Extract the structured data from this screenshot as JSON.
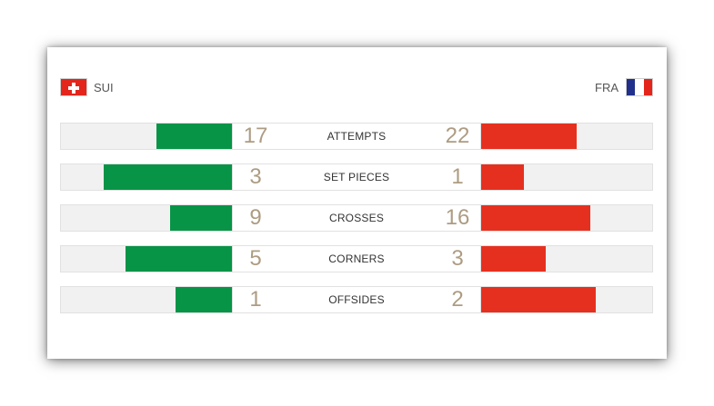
{
  "teams": {
    "home": {
      "code": "SUI",
      "flag_icon": "switzerland-flag-icon"
    },
    "away": {
      "code": "FRA",
      "flag_icon": "france-flag-icon"
    }
  },
  "colors": {
    "home": "#079447",
    "away": "#e6301f",
    "track": "#f1f1f1",
    "numbers": "#ad9c82"
  },
  "stats": [
    {
      "label": "ATTEMPTS",
      "home": 17,
      "away": 22,
      "home_fill": 0.44,
      "away_fill": 0.56
    },
    {
      "label": "SET PIECES",
      "home": 3,
      "away": 1,
      "home_fill": 0.75,
      "away_fill": 0.25
    },
    {
      "label": "CROSSES",
      "home": 9,
      "away": 16,
      "home_fill": 0.36,
      "away_fill": 0.64
    },
    {
      "label": "CORNERS",
      "home": 5,
      "away": 3,
      "home_fill": 0.62,
      "away_fill": 0.38
    },
    {
      "label": "OFFSIDES",
      "home": 1,
      "away": 2,
      "home_fill": 0.33,
      "away_fill": 0.67
    }
  ]
}
